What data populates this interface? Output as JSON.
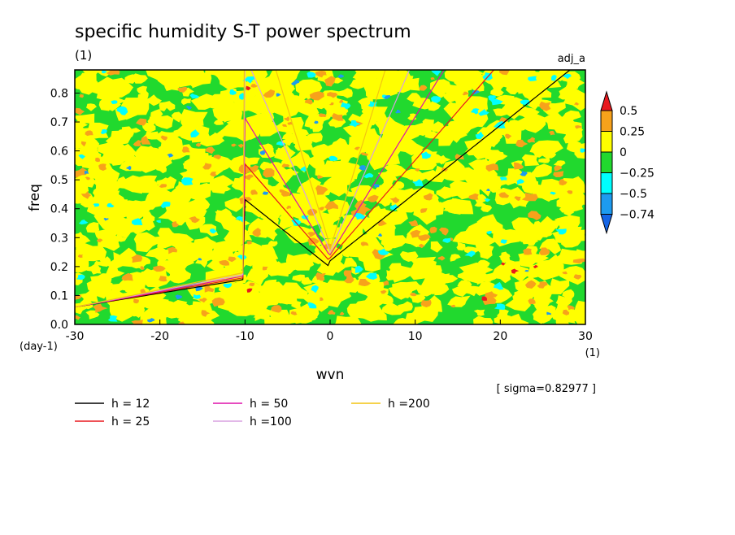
{
  "chart_data": {
    "type": "heatmap",
    "title": "specific humidity S-T power spectrum",
    "subtitle_left": "(1)",
    "subtitle_right": "adj_a",
    "xlabel": "wvn",
    "ylabel": "freq",
    "x_unit": "(1)",
    "y_unit": "(day-1)",
    "xlim": [
      -30,
      30
    ],
    "ylim": [
      0,
      0.88
    ],
    "xticks": [
      "-30",
      "-20",
      "-10",
      "0",
      "10",
      "20",
      "30"
    ],
    "yticks": [
      "0.0",
      "0.1",
      "0.2",
      "0.3",
      "0.4",
      "0.5",
      "0.6",
      "0.7",
      "0.8"
    ],
    "colorbar": {
      "levels": [
        "0.5",
        "0.25",
        "0",
        "-0.25",
        "-0.5",
        "-0.74"
      ],
      "colors": [
        "#e8191e",
        "#f7a21b",
        "#ffff00",
        "#21d92e",
        "#00ffff",
        "#1d9bf0",
        "#1565e6"
      ]
    },
    "sigma_label": "[ sigma=0.82977 ]",
    "series": [
      {
        "name": "h = 12",
        "color": "#000000",
        "h": 12
      },
      {
        "name": "h = 25",
        "color": "#e8191e",
        "h": 25
      },
      {
        "name": "h = 50",
        "color": "#dd11aa",
        "h": 50
      },
      {
        "name": "h =100",
        "color": "#d8a0e0",
        "h": 100
      },
      {
        "name": "h =200",
        "color": "#f2c411",
        "h": 200
      }
    ]
  }
}
